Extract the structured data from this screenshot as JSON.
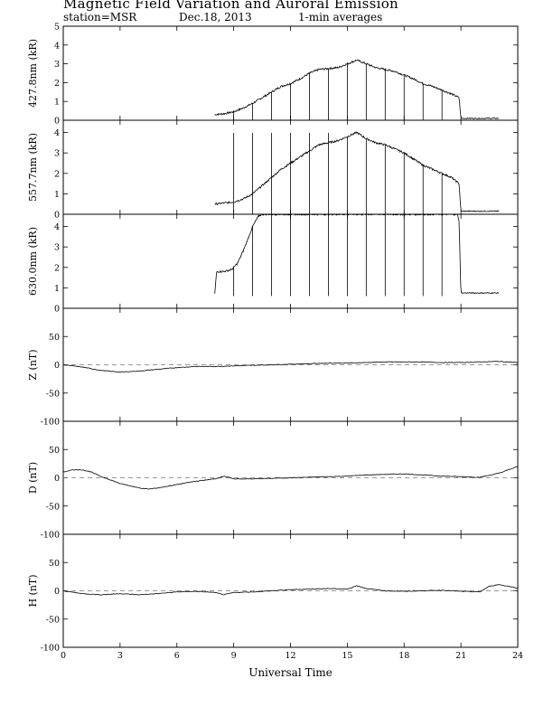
{
  "header": {
    "title": "Magnetic Field Variation and Auroral Emission",
    "station": "station=MSR",
    "date": "Dec.18, 2013",
    "averaging": "1-min averages"
  },
  "chart_data": [
    {
      "type": "line",
      "ylabel": "427.8nm (kR)",
      "xlim": [
        0,
        24
      ],
      "ylim": [
        0,
        5
      ],
      "yticks": [
        0,
        1,
        2,
        3,
        4,
        5
      ],
      "x": [
        8.0,
        8.5,
        9,
        9.5,
        10,
        10.5,
        11,
        11.5,
        12,
        12.5,
        13,
        13.5,
        14,
        14.5,
        15,
        15.5,
        16,
        16.5,
        17,
        17.5,
        18,
        18.5,
        19,
        19.5,
        20,
        20.5,
        20.9,
        21.0,
        22,
        23.0
      ],
      "y": [
        0.3,
        0.35,
        0.45,
        0.65,
        0.9,
        1.2,
        1.5,
        1.8,
        1.95,
        2.2,
        2.5,
        2.7,
        2.75,
        2.8,
        3.0,
        3.2,
        3.0,
        2.8,
        2.7,
        2.6,
        2.4,
        2.2,
        1.95,
        1.8,
        1.6,
        1.4,
        1.2,
        0.1,
        0.1,
        0.1
      ],
      "spike_times": [
        9,
        10,
        11,
        12,
        13,
        14,
        15,
        16,
        17,
        18,
        19,
        20
      ],
      "spike_base": 0
    },
    {
      "type": "line",
      "ylabel": "557.7nm (kR)",
      "xlim": [
        0,
        24
      ],
      "ylim": [
        0,
        4.6
      ],
      "yticks": [
        0,
        1,
        2,
        3,
        4
      ],
      "x": [
        8.0,
        8.5,
        9,
        9.5,
        10,
        10.5,
        11,
        11.5,
        12,
        12.5,
        13,
        13.5,
        14,
        14.5,
        15,
        15.5,
        16,
        16.5,
        17,
        17.5,
        18,
        18.5,
        19,
        19.5,
        20,
        20.5,
        20.9,
        21.0,
        22,
        23.0
      ],
      "y": [
        0.5,
        0.55,
        0.6,
        0.75,
        1.0,
        1.4,
        1.8,
        2.2,
        2.5,
        2.8,
        3.1,
        3.4,
        3.5,
        3.6,
        3.8,
        4.0,
        3.7,
        3.5,
        3.4,
        3.2,
        3.0,
        2.7,
        2.4,
        2.2,
        2.0,
        1.8,
        1.5,
        0.15,
        0.15,
        0.15
      ],
      "spike_times": [
        9,
        10,
        11,
        12,
        13,
        14,
        15,
        16,
        17,
        18,
        19,
        20
      ],
      "spike_base": 0
    },
    {
      "type": "line",
      "ylabel": "630.0nm (kR)",
      "xlim": [
        0,
        24
      ],
      "ylim": [
        0,
        4.6
      ],
      "yticks": [
        0,
        1,
        2,
        3,
        4
      ],
      "x": [
        8.0,
        8.1,
        8.5,
        8.9,
        9.2,
        9.5,
        9.8,
        10.0,
        10.3,
        10.5,
        11,
        20.8,
        20.9,
        21.0,
        22,
        23.0
      ],
      "y": [
        0.7,
        1.8,
        1.8,
        1.9,
        2.2,
        2.8,
        3.5,
        4.0,
        4.5,
        4.6,
        4.6,
        4.6,
        4.3,
        0.75,
        0.75,
        0.75
      ],
      "spike_times": [
        9,
        10,
        11,
        12,
        13,
        14,
        15,
        16,
        17,
        18,
        19,
        20
      ],
      "spike_base": 0.6
    },
    {
      "type": "line",
      "ylabel": "Z (nT)",
      "xlim": [
        0,
        24
      ],
      "ylim": [
        -100,
        100
      ],
      "yticks": [
        -100,
        -50,
        0,
        50
      ],
      "x": [
        0,
        1,
        2,
        3,
        4,
        5,
        6,
        7,
        8,
        9,
        10,
        11,
        12,
        13,
        14,
        15,
        16,
        17,
        18,
        19,
        20,
        21,
        22,
        23,
        24
      ],
      "y": [
        0,
        -4,
        -10,
        -13,
        -11,
        -8,
        -5,
        -3,
        -3,
        -2,
        -1,
        0,
        1,
        2,
        3,
        3,
        4,
        5,
        5,
        5,
        4,
        4,
        5,
        6,
        4
      ]
    },
    {
      "type": "line",
      "ylabel": "D (nT)",
      "xlim": [
        0,
        24
      ],
      "ylim": [
        -100,
        100
      ],
      "yticks": [
        -100,
        -50,
        0,
        50
      ],
      "x": [
        0,
        0.5,
        1,
        1.5,
        2,
        3,
        4,
        4.5,
        5,
        6,
        7,
        8,
        8.5,
        9,
        10,
        11,
        12,
        13,
        14,
        15,
        16,
        17,
        18,
        19,
        20,
        21,
        22,
        23,
        24
      ],
      "y": [
        10,
        14,
        14,
        10,
        2,
        -10,
        -18,
        -20,
        -18,
        -12,
        -6,
        -2,
        3,
        -2,
        -2,
        -1,
        0,
        1,
        2,
        3,
        5,
        6,
        7,
        5,
        3,
        2,
        1,
        8,
        20
      ]
    },
    {
      "type": "line",
      "ylabel": "H (nT)",
      "xlim": [
        0,
        24
      ],
      "ylim": [
        -100,
        100
      ],
      "yticks": [
        -100,
        -50,
        0,
        50
      ],
      "x": [
        0,
        1,
        2,
        3,
        4,
        5,
        6,
        7,
        8,
        8.5,
        9,
        10,
        11,
        12,
        13,
        14,
        15,
        15.5,
        16,
        17,
        18,
        19,
        20,
        21,
        22,
        22.5,
        23,
        24
      ],
      "y": [
        0,
        -5,
        -7,
        -5,
        -7,
        -5,
        -2,
        -1,
        -3,
        -7,
        -3,
        -2,
        0,
        2,
        3,
        4,
        3,
        9,
        4,
        0,
        -1,
        0,
        1,
        -1,
        -2,
        8,
        11,
        5
      ]
    }
  ],
  "xaxis": {
    "xlabel": "Universal Time",
    "ticks": [
      0,
      3,
      6,
      9,
      12,
      15,
      18,
      21,
      24
    ]
  }
}
